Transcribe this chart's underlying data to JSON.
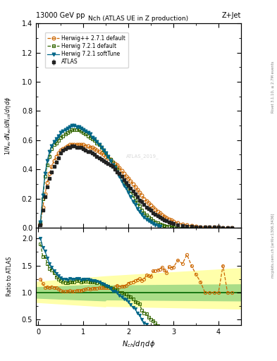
{
  "title_left": "13000 GeV pp",
  "title_right": "Z+Jet",
  "plot_title": "Nch (ATLAS UE in Z production)",
  "ylabel_main": "1/N_{ev} dN_{ev}/dN_{ch}/d\\eta d\\phi",
  "ylabel_ratio": "Ratio to ATLAS",
  "xlabel": "N_{ch}/d\\eta d\\phi",
  "watermark": "ATLAS_2019_",
  "right_label": "Rivet 3.1.10, ≥ 2.7M events",
  "right_label2": "mcplots.cern.ch [arXiv:1306.3436]",
  "atlas_x": [
    0.05,
    0.1,
    0.15,
    0.2,
    0.25,
    0.3,
    0.35,
    0.4,
    0.45,
    0.5,
    0.55,
    0.6,
    0.65,
    0.7,
    0.75,
    0.8,
    0.85,
    0.9,
    0.95,
    1.0,
    1.05,
    1.1,
    1.15,
    1.2,
    1.25,
    1.3,
    1.35,
    1.4,
    1.45,
    1.5,
    1.55,
    1.6,
    1.65,
    1.7,
    1.75,
    1.8,
    1.85,
    1.9,
    1.95,
    2.0,
    2.05,
    2.1,
    2.15,
    2.2,
    2.25,
    2.3,
    2.35,
    2.4,
    2.45,
    2.5,
    2.55,
    2.6,
    2.65,
    2.7,
    2.75,
    2.8,
    2.85,
    2.9,
    2.95,
    3.0,
    3.1,
    3.2,
    3.3,
    3.4,
    3.5,
    3.6,
    3.7,
    3.8,
    3.9,
    4.0,
    4.1,
    4.2,
    4.3
  ],
  "atlas_y": [
    0.02,
    0.12,
    0.21,
    0.28,
    0.34,
    0.38,
    0.42,
    0.45,
    0.48,
    0.51,
    0.53,
    0.54,
    0.55,
    0.55,
    0.56,
    0.56,
    0.55,
    0.55,
    0.55,
    0.54,
    0.53,
    0.52,
    0.52,
    0.51,
    0.5,
    0.49,
    0.48,
    0.47,
    0.46,
    0.45,
    0.44,
    0.43,
    0.42,
    0.4,
    0.38,
    0.37,
    0.35,
    0.33,
    0.31,
    0.29,
    0.27,
    0.25,
    0.23,
    0.21,
    0.19,
    0.18,
    0.16,
    0.14,
    0.13,
    0.12,
    0.1,
    0.09,
    0.08,
    0.07,
    0.06,
    0.055,
    0.05,
    0.04,
    0.035,
    0.03,
    0.02,
    0.015,
    0.01,
    0.008,
    0.006,
    0.005,
    0.004,
    0.003,
    0.002,
    0.002,
    0.001,
    0.001,
    0.001
  ],
  "atlas_yerr": [
    0.005,
    0.005,
    0.005,
    0.005,
    0.005,
    0.005,
    0.005,
    0.005,
    0.005,
    0.005,
    0.005,
    0.005,
    0.005,
    0.005,
    0.005,
    0.005,
    0.005,
    0.005,
    0.005,
    0.005,
    0.005,
    0.005,
    0.005,
    0.005,
    0.005,
    0.005,
    0.005,
    0.005,
    0.005,
    0.005,
    0.005,
    0.005,
    0.005,
    0.005,
    0.005,
    0.005,
    0.005,
    0.005,
    0.005,
    0.005,
    0.005,
    0.005,
    0.005,
    0.005,
    0.005,
    0.005,
    0.005,
    0.005,
    0.005,
    0.005,
    0.004,
    0.004,
    0.004,
    0.003,
    0.003,
    0.003,
    0.003,
    0.002,
    0.002,
    0.002,
    0.002,
    0.001,
    0.001,
    0.001,
    0.001,
    0.001,
    0.001,
    0.001,
    0.001,
    0.001,
    0.001,
    0.001,
    0.001
  ],
  "hpp_x": [
    0.05,
    0.1,
    0.15,
    0.2,
    0.25,
    0.3,
    0.35,
    0.4,
    0.45,
    0.5,
    0.55,
    0.6,
    0.65,
    0.7,
    0.75,
    0.8,
    0.85,
    0.9,
    0.95,
    1.0,
    1.05,
    1.1,
    1.15,
    1.2,
    1.25,
    1.3,
    1.35,
    1.4,
    1.45,
    1.5,
    1.55,
    1.6,
    1.65,
    1.7,
    1.75,
    1.8,
    1.85,
    1.9,
    1.95,
    2.0,
    2.05,
    2.1,
    2.15,
    2.2,
    2.25,
    2.3,
    2.35,
    2.4,
    2.45,
    2.5,
    2.55,
    2.6,
    2.65,
    2.7,
    2.75,
    2.8,
    2.85,
    2.9,
    2.95,
    3.0,
    3.1,
    3.2,
    3.3,
    3.4,
    3.5,
    3.6,
    3.7,
    3.8,
    3.9,
    4.0,
    4.1,
    4.2,
    4.3
  ],
  "hpp_y": [
    0.025,
    0.14,
    0.23,
    0.31,
    0.37,
    0.42,
    0.46,
    0.49,
    0.51,
    0.53,
    0.54,
    0.55,
    0.56,
    0.57,
    0.57,
    0.57,
    0.57,
    0.57,
    0.57,
    0.57,
    0.56,
    0.56,
    0.55,
    0.55,
    0.54,
    0.53,
    0.52,
    0.51,
    0.5,
    0.49,
    0.48,
    0.47,
    0.45,
    0.44,
    0.43,
    0.41,
    0.39,
    0.37,
    0.35,
    0.34,
    0.32,
    0.3,
    0.28,
    0.26,
    0.24,
    0.22,
    0.2,
    0.185,
    0.17,
    0.155,
    0.14,
    0.126,
    0.113,
    0.1,
    0.088,
    0.078,
    0.068,
    0.059,
    0.051,
    0.044,
    0.032,
    0.023,
    0.017,
    0.012,
    0.008,
    0.006,
    0.004,
    0.003,
    0.002,
    0.002,
    0.0015,
    0.001,
    0.001
  ],
  "h721d_x": [
    0.05,
    0.1,
    0.15,
    0.2,
    0.25,
    0.3,
    0.35,
    0.4,
    0.45,
    0.5,
    0.55,
    0.6,
    0.65,
    0.7,
    0.75,
    0.8,
    0.85,
    0.9,
    0.95,
    1.0,
    1.05,
    1.1,
    1.15,
    1.2,
    1.25,
    1.3,
    1.35,
    1.4,
    1.45,
    1.5,
    1.55,
    1.6,
    1.65,
    1.7,
    1.75,
    1.8,
    1.85,
    1.9,
    1.95,
    2.0,
    2.05,
    2.1,
    2.15,
    2.2,
    2.25,
    2.3,
    2.35,
    2.4,
    2.45,
    2.5,
    2.55,
    2.6,
    2.65,
    2.7,
    2.75,
    2.8,
    2.85,
    2.9,
    2.95,
    3.0,
    3.1,
    3.2,
    3.3,
    3.4,
    3.5
  ],
  "h721d_y": [
    0.038,
    0.2,
    0.35,
    0.43,
    0.49,
    0.54,
    0.57,
    0.58,
    0.6,
    0.62,
    0.63,
    0.64,
    0.65,
    0.66,
    0.67,
    0.67,
    0.67,
    0.67,
    0.66,
    0.65,
    0.64,
    0.63,
    0.62,
    0.61,
    0.6,
    0.58,
    0.57,
    0.55,
    0.53,
    0.51,
    0.49,
    0.47,
    0.45,
    0.42,
    0.4,
    0.37,
    0.35,
    0.32,
    0.3,
    0.27,
    0.25,
    0.22,
    0.19,
    0.17,
    0.15,
    0.12,
    0.1,
    0.085,
    0.07,
    0.06,
    0.048,
    0.039,
    0.031,
    0.024,
    0.019,
    0.015,
    0.011,
    0.008,
    0.006,
    0.005,
    0.003,
    0.002,
    0.001,
    0.001,
    0.001
  ],
  "h721s_x": [
    0.05,
    0.1,
    0.15,
    0.2,
    0.25,
    0.3,
    0.35,
    0.4,
    0.45,
    0.5,
    0.55,
    0.6,
    0.65,
    0.7,
    0.75,
    0.8,
    0.85,
    0.9,
    0.95,
    1.0,
    1.05,
    1.1,
    1.15,
    1.2,
    1.25,
    1.3,
    1.35,
    1.4,
    1.45,
    1.5,
    1.55,
    1.6,
    1.65,
    1.7,
    1.75,
    1.8,
    1.85,
    1.9,
    1.95,
    2.0,
    2.05,
    2.1,
    2.15,
    2.2,
    2.25,
    2.3,
    2.35,
    2.4,
    2.45,
    2.5,
    2.55,
    2.6,
    2.65,
    2.7
  ],
  "h721s_y": [
    0.04,
    0.22,
    0.37,
    0.46,
    0.52,
    0.56,
    0.59,
    0.61,
    0.63,
    0.65,
    0.66,
    0.67,
    0.68,
    0.69,
    0.7,
    0.7,
    0.69,
    0.69,
    0.68,
    0.67,
    0.66,
    0.65,
    0.64,
    0.62,
    0.61,
    0.59,
    0.57,
    0.55,
    0.53,
    0.51,
    0.49,
    0.46,
    0.43,
    0.41,
    0.38,
    0.35,
    0.32,
    0.29,
    0.27,
    0.24,
    0.21,
    0.18,
    0.16,
    0.13,
    0.11,
    0.09,
    0.07,
    0.058,
    0.046,
    0.036,
    0.028,
    0.021,
    0.015,
    0.011
  ],
  "ylim_main": [
    0.0,
    1.4
  ],
  "ylim_ratio": [
    0.4,
    2.2
  ],
  "xlim": [
    -0.05,
    4.5
  ],
  "atlas_color": "#222222",
  "hpp_color": "#cc6600",
  "h721d_color": "#336600",
  "h721s_color": "#006688",
  "band_yellow_lo": 0.7,
  "band_yellow_hi": 1.45,
  "band_green_lo": 0.85,
  "band_green_hi": 1.15,
  "band_yellow_color": "#ffffaa",
  "band_green_color": "#aadd88"
}
